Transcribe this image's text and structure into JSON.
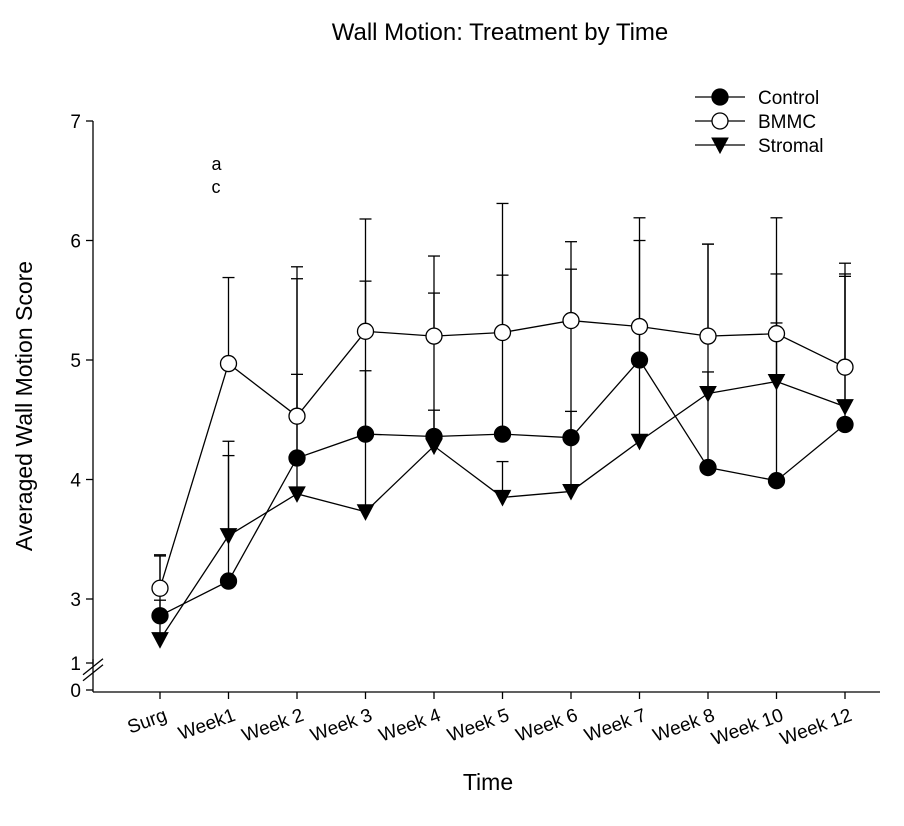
{
  "chart_data": {
    "type": "line",
    "title": "Wall Motion: Treatment by Time",
    "x_label": "Time",
    "y_label": "Averaged Wall Motion Score",
    "categories": [
      "Surg",
      "Week1",
      "Week 2",
      "Week 3",
      "Week 4",
      "Week 5",
      "Week 6",
      "Week 7",
      "Week 8",
      "Week 10",
      "Week 12"
    ],
    "ylim": [
      0,
      7
    ],
    "y_break": [
      1,
      2.5
    ],
    "yticks": [
      0,
      1,
      3,
      4,
      5,
      6,
      7
    ],
    "legend": "top-right",
    "annotations": [
      "a",
      "c"
    ],
    "series": [
      {
        "name": "Control",
        "color": "#000000",
        "marker": "filled-circle",
        "values": [
          2.86,
          3.15,
          4.18,
          4.38,
          4.36,
          4.38,
          4.35,
          5.0,
          4.1,
          3.99,
          4.46
        ],
        "errors": [
          0.5,
          1.05,
          1.5,
          1.28,
          1.2,
          1.33,
          1.41,
          1.19,
          1.87,
          1.73,
          1.24
        ]
      },
      {
        "name": "BMMC",
        "color": "#000000",
        "marker": "open-circle",
        "values": [
          3.09,
          4.97,
          4.53,
          5.24,
          5.2,
          5.23,
          5.33,
          5.28,
          5.2,
          5.22,
          4.94
        ],
        "errors": [
          0.28,
          0.72,
          1.25,
          0.94,
          0.67,
          1.08,
          0.66,
          0.72,
          0.77,
          0.97,
          0.87
        ]
      },
      {
        "name": "Stromal",
        "color": "#000000",
        "marker": "triangle-down",
        "values": [
          2.66,
          3.53,
          3.88,
          3.73,
          4.28,
          3.85,
          3.9,
          4.32,
          4.72,
          4.82,
          4.61
        ],
        "errors": [
          0.33,
          0.79,
          1.0,
          1.18,
          0.3,
          0.3,
          0.67,
          1.0,
          0.18,
          0.49,
          1.11
        ]
      }
    ]
  }
}
